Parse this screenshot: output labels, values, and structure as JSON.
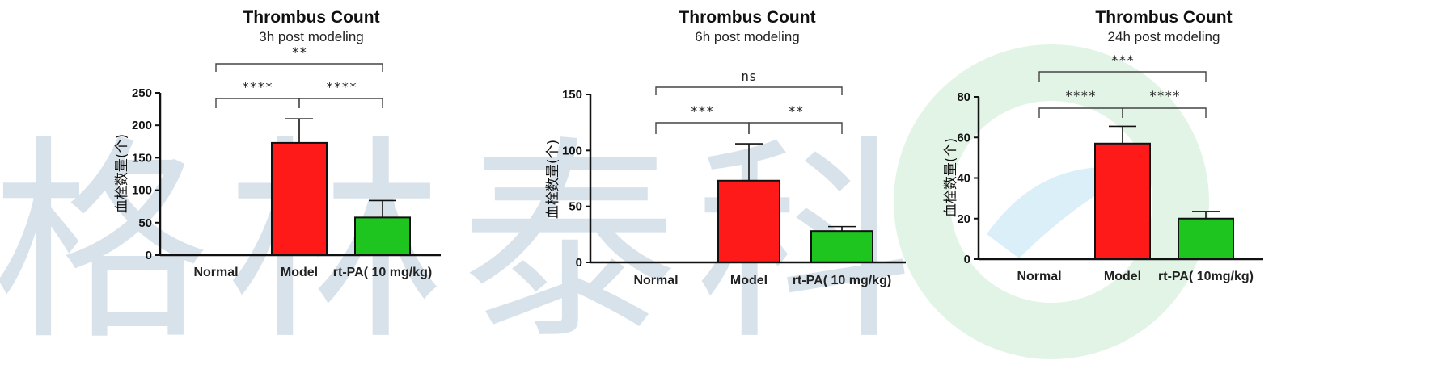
{
  "watermark": {
    "text": "格林泰科"
  },
  "colors": {
    "red": "#ff1a1a",
    "green": "#1ec51e",
    "stroke": "#111111"
  },
  "chart_data": [
    {
      "type": "bar",
      "title": "Thrombus Count",
      "subtitle": "3h post modeling",
      "ylabel": "血栓数量(个)",
      "categories": [
        "Normal",
        "Model",
        "rt-PA( 10 mg/kg)"
      ],
      "values": [
        0,
        173,
        58
      ],
      "errors": [
        0,
        37,
        26
      ],
      "ylim": [
        0,
        250
      ],
      "yticks": [
        0,
        50,
        100,
        150,
        200,
        250
      ],
      "significance": [
        {
          "from": 0,
          "to": 1,
          "label": "****"
        },
        {
          "from": 1,
          "to": 2,
          "label": "****"
        },
        {
          "from": 0,
          "to": 2,
          "label": "**"
        }
      ]
    },
    {
      "type": "bar",
      "title": "Thrombus Count",
      "subtitle": "6h post modeling",
      "ylabel": "血栓数量(个)",
      "categories": [
        "Normal",
        "Model",
        "rt-PA( 10 mg/kg)"
      ],
      "values": [
        0,
        73,
        28
      ],
      "errors": [
        0,
        33,
        4
      ],
      "ylim": [
        0,
        150
      ],
      "yticks": [
        0,
        50,
        100,
        150
      ],
      "significance": [
        {
          "from": 0,
          "to": 1,
          "label": "***"
        },
        {
          "from": 1,
          "to": 2,
          "label": "**"
        },
        {
          "from": 0,
          "to": 2,
          "label": "ns"
        }
      ]
    },
    {
      "type": "bar",
      "title": "Thrombus Count",
      "subtitle": "24h post modeling",
      "ylabel": "血栓数量(个)",
      "categories": [
        "Normal",
        "Model",
        "rt-PA( 10mg/kg)"
      ],
      "values": [
        0,
        57,
        20
      ],
      "errors": [
        0,
        8.5,
        3.5
      ],
      "ylim": [
        0,
        80
      ],
      "yticks": [
        0,
        20,
        40,
        60,
        80
      ],
      "significance": [
        {
          "from": 0,
          "to": 1,
          "label": "****"
        },
        {
          "from": 1,
          "to": 2,
          "label": "****"
        },
        {
          "from": 0,
          "to": 2,
          "label": "***"
        }
      ]
    }
  ]
}
